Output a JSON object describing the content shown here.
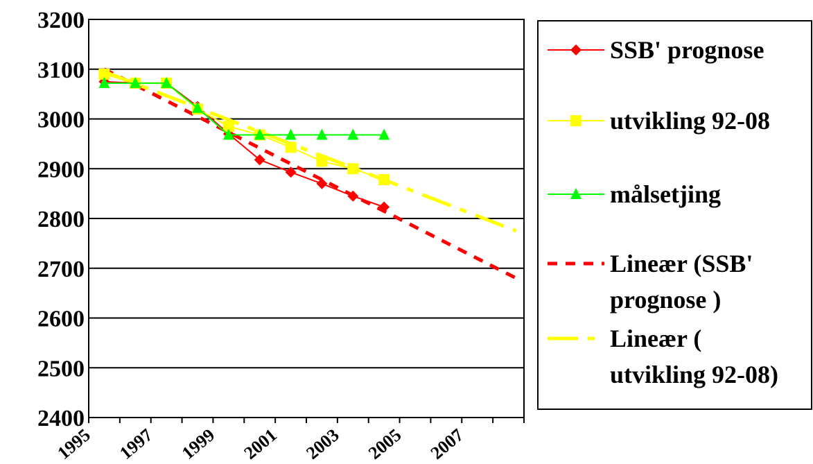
{
  "chart_data": {
    "type": "line",
    "title": "",
    "xlabel": "",
    "ylabel": "",
    "ylim": [
      2400,
      3200
    ],
    "yticks": [
      2400,
      2500,
      2600,
      2700,
      2800,
      2900,
      3000,
      3100,
      3200
    ],
    "xlim": [
      1995,
      2009
    ],
    "xticks": [
      1995,
      1997,
      1999,
      2001,
      2003,
      2005,
      2007
    ],
    "grid": "horizontal",
    "legend_position": "right",
    "series": [
      {
        "name": "SSB' prognose",
        "color": "#ff0000",
        "marker": "diamond",
        "x": [
          1995.5,
          1996.5,
          1997.5,
          1998.5,
          1999.5,
          2000.5,
          2001.5,
          2002.5,
          2003.5,
          2004.5
        ],
        "values": [
          3075,
          3072,
          3072,
          3025,
          2970,
          2918,
          2893,
          2870,
          2845,
          2823
        ]
      },
      {
        "name": "utvikling 92-08",
        "color": "#ffff00",
        "marker": "square",
        "x": [
          1995.5,
          1996.5,
          1997.5,
          1998.5,
          1999.5,
          2000.5,
          2001.5,
          2002.5,
          2003.5,
          2004.5
        ],
        "values": [
          3090,
          3072,
          3072,
          3020,
          2985,
          2968,
          2943,
          2915,
          2900,
          2878
        ]
      },
      {
        "name": "målsetjing",
        "color": "#00ff00",
        "marker": "triangle",
        "x": [
          1995.5,
          1996.5,
          1997.5,
          1998.5,
          1999.5,
          2000.5,
          2001.5,
          2002.5,
          2003.5,
          2004.5
        ],
        "values": [
          3072,
          3072,
          3072,
          3022,
          2968,
          2968,
          2968,
          2968,
          2968,
          2968
        ]
      }
    ],
    "trendlines": [
      {
        "name": "Lineær (SSB' prognose )",
        "color": "#ff0000",
        "style": "dotted",
        "x": [
          1995.5,
          2008.75
        ],
        "values": [
          3100,
          2680
        ]
      },
      {
        "name": "Lineær ( utvikling 92-08)",
        "color": "#ffff00",
        "style": "dashdot",
        "x": [
          1995.5,
          2008.75
        ],
        "values": [
          3095,
          2775
        ]
      }
    ]
  },
  "legend": {
    "entries": [
      {
        "lines": [
          "SSB' prognose"
        ],
        "color": "#ff0000",
        "marker": "diamond",
        "style": "solid"
      },
      {
        "lines": [
          " utvikling 92-08"
        ],
        "color": "#ffff00",
        "marker": "square",
        "style": "solid"
      },
      {
        "lines": [
          "målsetjing"
        ],
        "color": "#00ff00",
        "marker": "triangle",
        "style": "solid"
      },
      {
        "lines": [
          "Lineær (SSB'",
          "prognose )"
        ],
        "color": "#ff0000",
        "marker": "none",
        "style": "dotted"
      },
      {
        "lines": [
          "Lineær (",
          "utvikling 92-08)"
        ],
        "color": "#ffff00",
        "marker": "none",
        "style": "dashdot"
      }
    ]
  }
}
